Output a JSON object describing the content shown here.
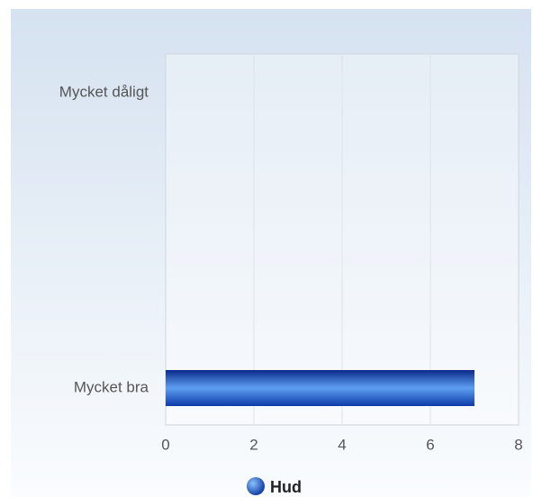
{
  "chart_data": {
    "type": "bar",
    "orientation": "horizontal",
    "categories": [
      "Mycket dåligt",
      "Mycket bra"
    ],
    "series": [
      {
        "name": "Hud",
        "color": "#1e5fd0",
        "values": [
          0,
          7
        ]
      }
    ],
    "xlim": [
      0,
      8
    ],
    "xticks": [
      0,
      2,
      4,
      6,
      8
    ],
    "grid": true,
    "legend": "bottom"
  }
}
